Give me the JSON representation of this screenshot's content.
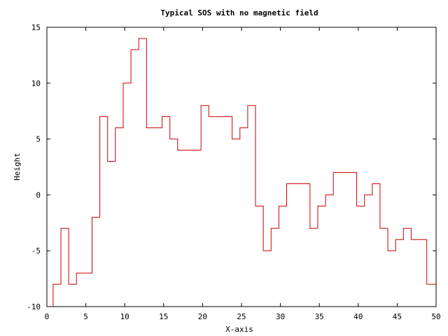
{
  "chart_data": {
    "type": "line",
    "step": true,
    "title": "Typical SOS with no magnetic field",
    "xlabel": "X-axis",
    "ylabel": "Height",
    "xlim": [
      0,
      50
    ],
    "ylim": [
      -10,
      15
    ],
    "xticks": [
      0,
      5,
      10,
      15,
      20,
      25,
      30,
      35,
      40,
      45,
      50
    ],
    "yticks": [
      -10,
      -5,
      0,
      5,
      10,
      15
    ],
    "grid": false,
    "legend": "none",
    "series": [
      {
        "color": "#cc0000",
        "x": [
          0.8,
          1.8,
          2.8,
          3.8,
          4.8,
          5.8,
          6.8,
          7.8,
          8.8,
          9.8,
          10.8,
          11.8,
          12.8,
          13.8,
          14.8,
          15.8,
          16.8,
          17.8,
          18.8,
          19.8,
          20.8,
          21.8,
          22.8,
          23.8,
          24.8,
          25.3,
          25.8,
          26.8,
          27.8,
          28.8,
          29.8,
          30.8,
          31.8,
          32.8,
          33.8,
          34.8,
          35.8,
          36.8,
          37.8,
          38.8,
          39.8,
          40.8,
          41.8,
          42.8,
          43.8,
          44.8,
          45.8,
          46.8,
          47.8,
          48.8,
          49.8
        ],
        "y": [
          -8,
          -3,
          -8,
          -7,
          -7,
          -2,
          7,
          3,
          6,
          10,
          13,
          14,
          6,
          6,
          7,
          5,
          4,
          4,
          4,
          8,
          7,
          7,
          7,
          5,
          6,
          6,
          8,
          -1,
          -5,
          -3,
          -1,
          1,
          1,
          1,
          -3,
          -1,
          0,
          2,
          2,
          2,
          -1,
          0,
          1,
          -3,
          -5,
          -4,
          -3,
          -4,
          -4,
          -8,
          -8
        ]
      }
    ]
  }
}
